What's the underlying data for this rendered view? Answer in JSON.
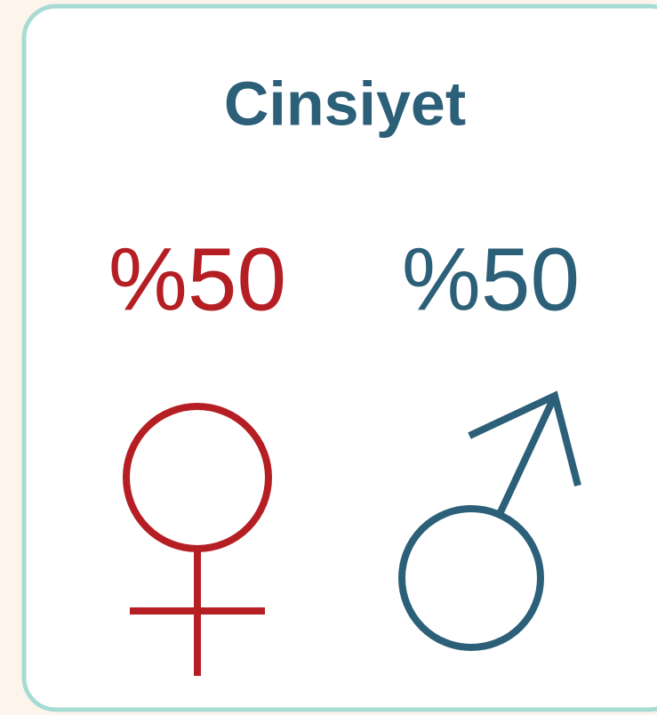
{
  "card": {
    "title": "Cinsiyet",
    "items": [
      {
        "label": "%50"
      },
      {
        "label": "%50"
      }
    ]
  }
}
